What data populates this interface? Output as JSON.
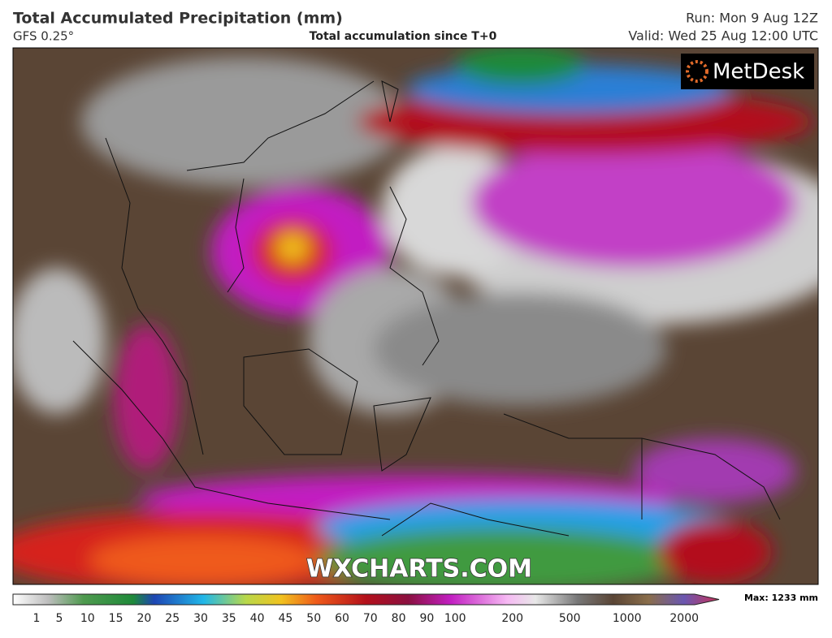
{
  "header": {
    "title": "Total Accumulated Precipitation (mm)",
    "model": "GFS 0.25°",
    "subtitle": "Total accumulation since T+0",
    "run": "Run: Mon 9 Aug 12Z",
    "valid": "Valid: Wed 25 Aug 12:00 UTC"
  },
  "logo": "MetDesk",
  "watermark": "WXCHARTS.COM",
  "colorbar": {
    "ticks": [
      1,
      5,
      10,
      15,
      20,
      25,
      30,
      35,
      40,
      45,
      50,
      60,
      70,
      80,
      90,
      100,
      200,
      500,
      1000,
      2000
    ],
    "max_label": "Max: 1233 mm"
  }
}
